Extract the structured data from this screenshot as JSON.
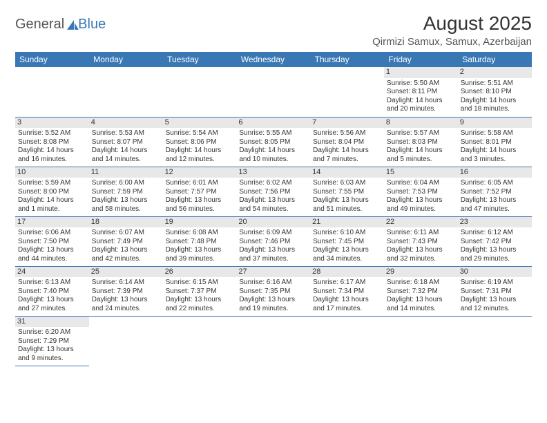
{
  "brand": {
    "part1": "General",
    "part2": "Blue"
  },
  "colors": {
    "accent": "#3a78b5",
    "dayShade": "#e8e8e8",
    "text": "#333333",
    "bg": "#ffffff"
  },
  "title": "August 2025",
  "location": "Qirmizi Samux, Samux, Azerbaijan",
  "dayHeaders": [
    "Sunday",
    "Monday",
    "Tuesday",
    "Wednesday",
    "Thursday",
    "Friday",
    "Saturday"
  ],
  "weeks": [
    [
      null,
      null,
      null,
      null,
      null,
      {
        "n": "1",
        "sr": "5:50 AM",
        "ss": "8:11 PM",
        "dl": "14 hours and 20 minutes."
      },
      {
        "n": "2",
        "sr": "5:51 AM",
        "ss": "8:10 PM",
        "dl": "14 hours and 18 minutes."
      }
    ],
    [
      {
        "n": "3",
        "sr": "5:52 AM",
        "ss": "8:08 PM",
        "dl": "14 hours and 16 minutes."
      },
      {
        "n": "4",
        "sr": "5:53 AM",
        "ss": "8:07 PM",
        "dl": "14 hours and 14 minutes."
      },
      {
        "n": "5",
        "sr": "5:54 AM",
        "ss": "8:06 PM",
        "dl": "14 hours and 12 minutes."
      },
      {
        "n": "6",
        "sr": "5:55 AM",
        "ss": "8:05 PM",
        "dl": "14 hours and 10 minutes."
      },
      {
        "n": "7",
        "sr": "5:56 AM",
        "ss": "8:04 PM",
        "dl": "14 hours and 7 minutes."
      },
      {
        "n": "8",
        "sr": "5:57 AM",
        "ss": "8:03 PM",
        "dl": "14 hours and 5 minutes."
      },
      {
        "n": "9",
        "sr": "5:58 AM",
        "ss": "8:01 PM",
        "dl": "14 hours and 3 minutes."
      }
    ],
    [
      {
        "n": "10",
        "sr": "5:59 AM",
        "ss": "8:00 PM",
        "dl": "14 hours and 1 minute."
      },
      {
        "n": "11",
        "sr": "6:00 AM",
        "ss": "7:59 PM",
        "dl": "13 hours and 58 minutes."
      },
      {
        "n": "12",
        "sr": "6:01 AM",
        "ss": "7:57 PM",
        "dl": "13 hours and 56 minutes."
      },
      {
        "n": "13",
        "sr": "6:02 AM",
        "ss": "7:56 PM",
        "dl": "13 hours and 54 minutes."
      },
      {
        "n": "14",
        "sr": "6:03 AM",
        "ss": "7:55 PM",
        "dl": "13 hours and 51 minutes."
      },
      {
        "n": "15",
        "sr": "6:04 AM",
        "ss": "7:53 PM",
        "dl": "13 hours and 49 minutes."
      },
      {
        "n": "16",
        "sr": "6:05 AM",
        "ss": "7:52 PM",
        "dl": "13 hours and 47 minutes."
      }
    ],
    [
      {
        "n": "17",
        "sr": "6:06 AM",
        "ss": "7:50 PM",
        "dl": "13 hours and 44 minutes."
      },
      {
        "n": "18",
        "sr": "6:07 AM",
        "ss": "7:49 PM",
        "dl": "13 hours and 42 minutes."
      },
      {
        "n": "19",
        "sr": "6:08 AM",
        "ss": "7:48 PM",
        "dl": "13 hours and 39 minutes."
      },
      {
        "n": "20",
        "sr": "6:09 AM",
        "ss": "7:46 PM",
        "dl": "13 hours and 37 minutes."
      },
      {
        "n": "21",
        "sr": "6:10 AM",
        "ss": "7:45 PM",
        "dl": "13 hours and 34 minutes."
      },
      {
        "n": "22",
        "sr": "6:11 AM",
        "ss": "7:43 PM",
        "dl": "13 hours and 32 minutes."
      },
      {
        "n": "23",
        "sr": "6:12 AM",
        "ss": "7:42 PM",
        "dl": "13 hours and 29 minutes."
      }
    ],
    [
      {
        "n": "24",
        "sr": "6:13 AM",
        "ss": "7:40 PM",
        "dl": "13 hours and 27 minutes."
      },
      {
        "n": "25",
        "sr": "6:14 AM",
        "ss": "7:39 PM",
        "dl": "13 hours and 24 minutes."
      },
      {
        "n": "26",
        "sr": "6:15 AM",
        "ss": "7:37 PM",
        "dl": "13 hours and 22 minutes."
      },
      {
        "n": "27",
        "sr": "6:16 AM",
        "ss": "7:35 PM",
        "dl": "13 hours and 19 minutes."
      },
      {
        "n": "28",
        "sr": "6:17 AM",
        "ss": "7:34 PM",
        "dl": "13 hours and 17 minutes."
      },
      {
        "n": "29",
        "sr": "6:18 AM",
        "ss": "7:32 PM",
        "dl": "13 hours and 14 minutes."
      },
      {
        "n": "30",
        "sr": "6:19 AM",
        "ss": "7:31 PM",
        "dl": "13 hours and 12 minutes."
      }
    ],
    [
      {
        "n": "31",
        "sr": "6:20 AM",
        "ss": "7:29 PM",
        "dl": "13 hours and 9 minutes."
      },
      null,
      null,
      null,
      null,
      null,
      null
    ]
  ],
  "labels": {
    "sunrise": "Sunrise:",
    "sunset": "Sunset:",
    "daylight": "Daylight:"
  }
}
